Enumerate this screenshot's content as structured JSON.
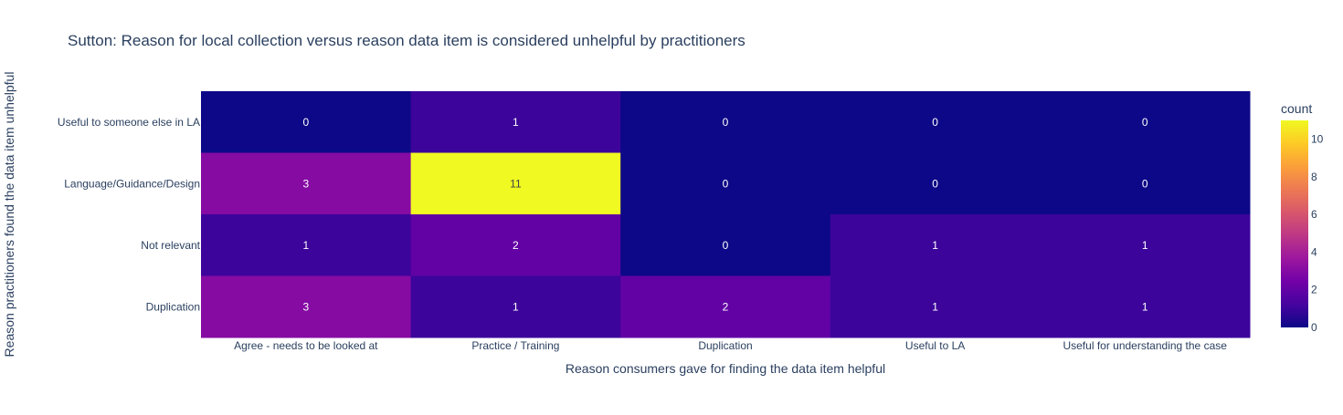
{
  "chart_data": {
    "type": "heatmap",
    "title": "Sutton: Reason for local collection versus reason data item is considered unhelpful by practitioners",
    "xlabel": "Reason consumers gave for finding the data item helpful",
    "ylabel": "Reason practitioners found the data item unhelpful",
    "x_categories": [
      "Agree - needs to be looked at",
      "Practice / Training",
      "Duplication",
      "Useful to LA",
      "Useful for understanding the case"
    ],
    "y_categories": [
      "Useful to someone else in LA",
      "Language/Guidance/Design",
      "Not relevant",
      "Duplication"
    ],
    "z": [
      [
        0,
        1,
        0,
        0,
        0
      ],
      [
        3,
        11,
        0,
        0,
        0
      ],
      [
        1,
        2,
        0,
        1,
        1
      ],
      [
        3,
        1,
        2,
        1,
        1
      ]
    ],
    "colorbar": {
      "title": "count",
      "range": [
        0,
        11
      ],
      "ticks": [
        "0",
        "2",
        "4",
        "6",
        "8",
        "10"
      ],
      "colorscale": [
        "#0d0887",
        "#46039f",
        "#7201a8",
        "#9c179e",
        "#bd3786",
        "#d8576b",
        "#ed7953",
        "#fb9f3a",
        "#fdca26",
        "#f0f921"
      ]
    }
  }
}
